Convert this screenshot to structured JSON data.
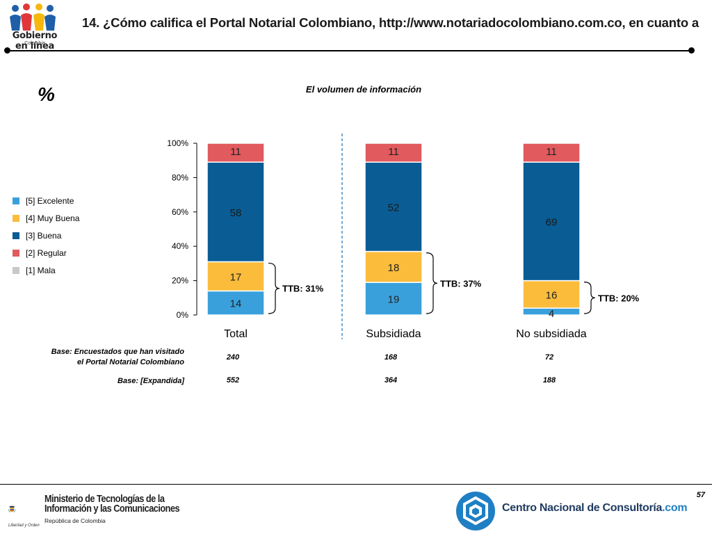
{
  "header": {
    "logo_text": "Gobierno en línea",
    "logo_sub": "Colombia",
    "title": "14. ¿Cómo califica el Portal Notarial Colombiano, http://www.notariadocolombiano.com.co, en cuanto a"
  },
  "unit_label": "%",
  "legend": [
    {
      "label": "[5] Excelente",
      "color": "#3aa0dc"
    },
    {
      "label": "[4] Muy Buena",
      "color": "#fbbc3c"
    },
    {
      "label": "[3] Buena",
      "color": "#0a5c94"
    },
    {
      "label": "[2] Regular",
      "color": "#e05a5e"
    },
    {
      "label": "[1] Mala",
      "color": "#c8c8c8"
    }
  ],
  "chart_data": {
    "type": "bar",
    "stacked": true,
    "title": "El volumen de información",
    "categories": [
      "Total",
      "Subsidiada",
      "No subsidiada"
    ],
    "series": [
      {
        "name": "[5] Excelente",
        "values": [
          14,
          19,
          4
        ],
        "color": "#3aa0dc"
      },
      {
        "name": "[4] Muy Buena",
        "values": [
          17,
          18,
          16
        ],
        "color": "#fbbc3c"
      },
      {
        "name": "[3] Buena",
        "values": [
          58,
          52,
          69
        ],
        "color": "#0a5c94"
      },
      {
        "name": "[2] Regular",
        "values": [
          11,
          11,
          11
        ],
        "color": "#e05a5e"
      },
      {
        "name": "[1] Mala",
        "values": [
          0,
          0,
          0
        ],
        "color": "#c8c8c8"
      }
    ],
    "ttb": [
      "TTB: 31%",
      "TTB: 37%",
      "TTB: 20%"
    ],
    "ylim": [
      0,
      100
    ],
    "yticks": [
      "0%",
      "20%",
      "40%",
      "60%",
      "80%",
      "100%"
    ],
    "legend_position": "left",
    "grid": false
  },
  "bases": {
    "visited_label_line1": "Base: Encuestados que han visitado",
    "visited_label_line2": "el Portal Notarial Colombiano",
    "visited_values": [
      "240",
      "168",
      "72"
    ],
    "expanded_label": "Base: [Expandida]",
    "expanded_values": [
      "552",
      "364",
      "188"
    ]
  },
  "footer": {
    "mintic_line1": "Ministerio de Tecnologías de la",
    "mintic_line2": "Información y las Comunicaciones",
    "mintic_sub": "República de Colombia",
    "mintic_motto": "Libertad y Orden",
    "cnc_name": "Centro Nacional de Consultoría",
    "cnc_suffix": ".com",
    "page_number": "57"
  }
}
